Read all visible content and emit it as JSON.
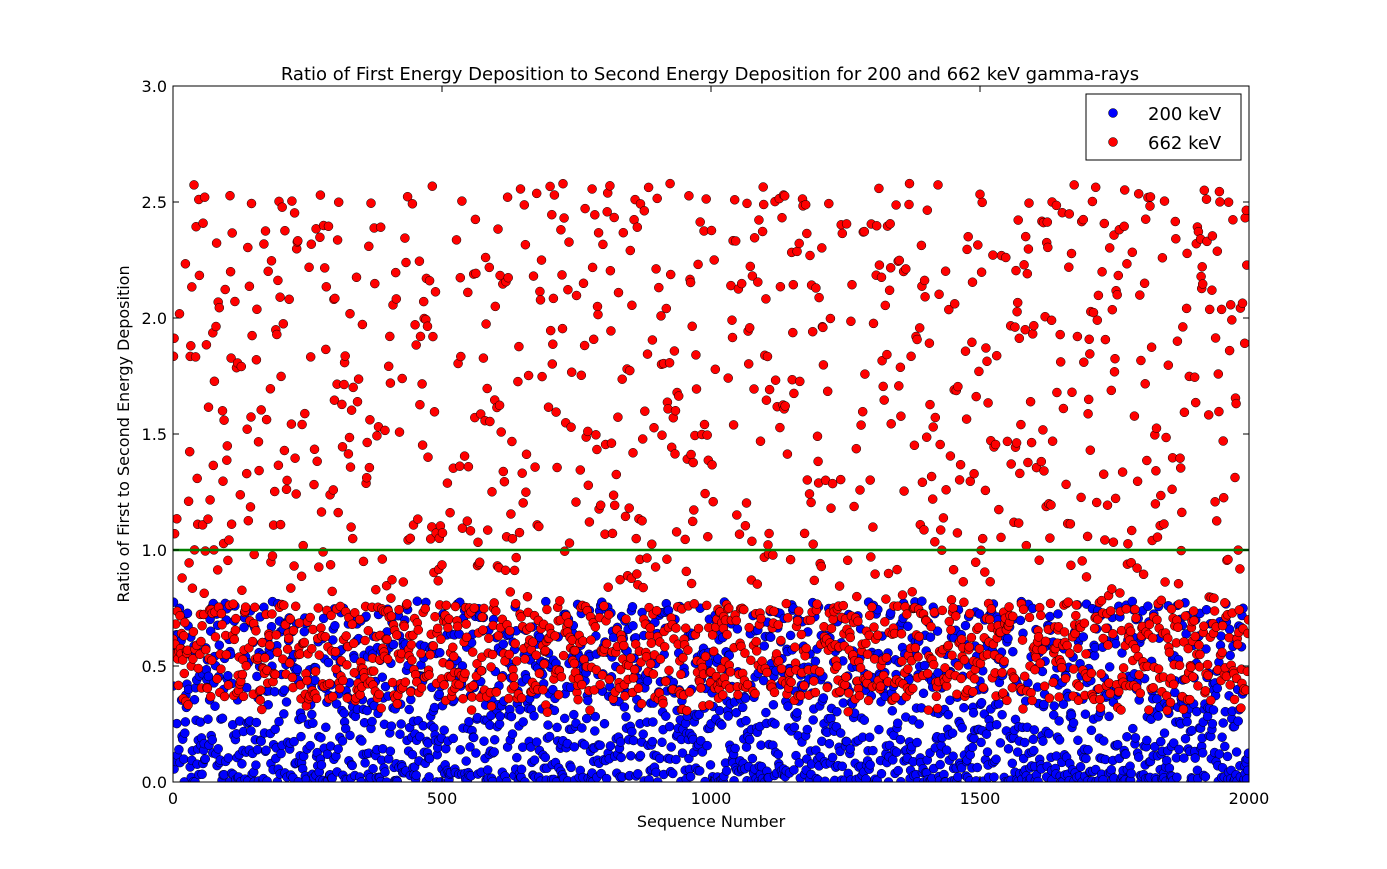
{
  "chart_data": {
    "type": "scatter",
    "title": "Ratio of First Energy Deposition to Second Energy Deposition for 200 and 662 keV gamma-rays",
    "xlabel": "Sequence Number",
    "ylabel": "Ratio of First to Second Energy Deposition",
    "xlim": [
      0,
      2000
    ],
    "ylim": [
      0.0,
      3.0
    ],
    "x_ticks": [
      "0",
      "500",
      "1000",
      "1500",
      "2000"
    ],
    "y_ticks": [
      "0.0",
      "0.5",
      "1.0",
      "1.5",
      "2.0",
      "2.5",
      "3.0"
    ],
    "grid": false,
    "legend_position": "top-right",
    "reference_line": {
      "y": 1.0,
      "color": "#008000"
    },
    "series": [
      {
        "name": "200 keV",
        "color": "#0000ff",
        "points_per_sequence": 2000,
        "value_range": [
          0.0,
          0.78
        ],
        "distribution": "one point per sequence number; densest near 0.0–0.3, thinning toward 0.78"
      },
      {
        "name": "662 keV",
        "color": "#ff0000",
        "points_per_sequence": 2000,
        "value_range": [
          0.3,
          2.58
        ],
        "distribution": "one point per sequence number; dense band 0.35–0.75, sparser uniform scatter 0.75–2.58"
      }
    ]
  }
}
